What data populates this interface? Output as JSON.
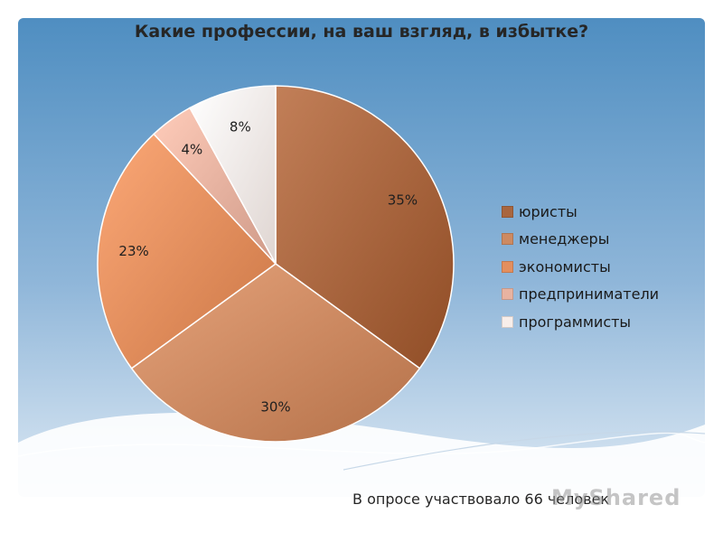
{
  "chart_data": {
    "type": "pie",
    "title": "Какие профессии, на ваш взгляд, в избытке?",
    "categories": [
      "юристы",
      "менеджеры",
      "экономисты",
      "предприниматели",
      "программисты"
    ],
    "values": [
      35,
      30,
      23,
      4,
      8
    ],
    "data_labels": [
      "35%",
      "30%",
      "23%",
      "4%",
      "8%"
    ],
    "colors": [
      "#a9663f",
      "#cd8a62",
      "#e38f5e",
      "#e8b3a1",
      "#f8eeea"
    ],
    "legend_position": "right"
  },
  "footnote": "В опросе участвовало 66 человек",
  "watermark": "MyShared",
  "colors": {
    "background_top": "#4f8ec1",
    "background_bottom": "#dde9f4"
  }
}
